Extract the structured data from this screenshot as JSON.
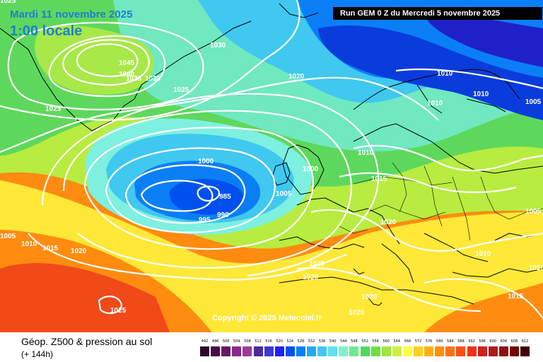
{
  "header": {
    "date_label": "Mardi 11 novembre 2025",
    "time_label": "1:00 locale",
    "run_label": "Run GEM 0 Z du Mercredi 5 novembre 2025"
  },
  "copyright": "Copyright © 2025 Meteociel.fr",
  "footer": {
    "title": "Géop. Z500 & pression au sol",
    "subtitle": "(+ 144h)"
  },
  "scale": {
    "labels": [
      "492",
      "496",
      "500",
      "504",
      "508",
      "512",
      "516",
      "520",
      "524",
      "528",
      "532",
      "536",
      "540",
      "544",
      "548",
      "552",
      "556",
      "560",
      "564",
      "568",
      "572",
      "576",
      "580",
      "584",
      "588",
      "592",
      "596",
      "600",
      "604",
      "608",
      "612"
    ],
    "colors": [
      "#2a0a2a",
      "#4a0a4a",
      "#6a166a",
      "#8a2a8a",
      "#9a3a9a",
      "#4a2aa0",
      "#3a3ad0",
      "#2020f0",
      "#0050f0",
      "#0a7ff5",
      "#22a8f0",
      "#40c8f0",
      "#60e0f0",
      "#80f0d0",
      "#70e890",
      "#50d860",
      "#70e040",
      "#a0e840",
      "#d0f040",
      "#ffff40",
      "#ffd020",
      "#ffb010",
      "#ff9000",
      "#ff7010",
      "#ff5010",
      "#f03018",
      "#d02020",
      "#b01818",
      "#901010",
      "#700808",
      "#400000"
    ]
  },
  "isobars": [
    {
      "label": "1045"
    },
    {
      "label": "1040"
    },
    {
      "label": "1035"
    },
    {
      "label": "1030"
    },
    {
      "label": "1030"
    },
    {
      "label": "1025"
    },
    {
      "label": "1025"
    },
    {
      "label": "1020"
    },
    {
      "label": "1010"
    },
    {
      "label": "1010"
    },
    {
      "label": "1010"
    },
    {
      "label": "1005"
    },
    {
      "label": "1000"
    },
    {
      "label": "1000"
    },
    {
      "label": "1005"
    },
    {
      "label": "985"
    },
    {
      "label": "990"
    },
    {
      "label": "995"
    },
    {
      "label": "1010"
    },
    {
      "label": "1015"
    },
    {
      "label": "1020"
    },
    {
      "label": "1005"
    },
    {
      "label": "1010"
    },
    {
      "label": "1015"
    },
    {
      "label": "1020"
    },
    {
      "label": "1020"
    },
    {
      "label": "1020"
    },
    {
      "label": "1020"
    },
    {
      "label": "1020"
    },
    {
      "label": "1025"
    },
    {
      "label": "1010"
    },
    {
      "label": "1005"
    },
    {
      "label": "1015"
    },
    {
      "label": "1020"
    },
    {
      "label": "1025"
    }
  ]
}
